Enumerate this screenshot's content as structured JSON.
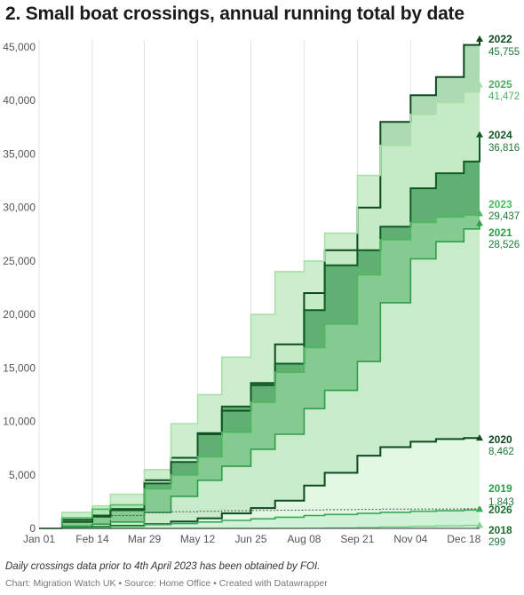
{
  "title": "2. Small boat crossings, annual running total by date",
  "note": "Daily crossings data prior to 4th April 2023 has been obtained by FOI.",
  "credit": "Chart: Migration Watch UK • Source: Home Office • Created with Datawrapper",
  "chart_data": {
    "type": "area",
    "title": "2. Small boat crossings, annual running total by date",
    "xlabel": "",
    "ylabel": "",
    "ylim": [
      0,
      45000
    ],
    "xlim": [
      "Jan 01",
      "Dec 31"
    ],
    "grid": "vertical gridlines at x ticks, horizontal baseline",
    "y_ticks": [
      "0",
      "5,000",
      "10,000",
      "15,000",
      "20,000",
      "25,000",
      "30,000",
      "35,000",
      "40,000",
      "45,000"
    ],
    "x_ticks": [
      "Jan 01",
      "Feb 14",
      "Mar 29",
      "May 12",
      "Jun 25",
      "Aug 08",
      "Sep 21",
      "Nov 04",
      "Dec 18"
    ],
    "series": [
      {
        "name": "2022",
        "end_label": "45,755",
        "color": "#0d4a1f",
        "x": [
          "Jan 01",
          "Jan 20",
          "Feb 14",
          "Mar 01",
          "Mar 29",
          "Apr 20",
          "May 12",
          "Jun 01",
          "Jun 25",
          "Jul 15",
          "Aug 08",
          "Aug 25",
          "Sep 21",
          "Oct 10",
          "Nov 04",
          "Nov 25",
          "Dec 18",
          "Dec 31"
        ],
        "values": [
          0,
          800,
          1100,
          1800,
          4500,
          6600,
          8900,
          11000,
          13400,
          17200,
          22000,
          26000,
          30000,
          38000,
          40500,
          42200,
          45200,
          45755
        ]
      },
      {
        "name": "2025",
        "end_label": "41,472",
        "color": "#a8e0a8",
        "x": [
          "Jan 01",
          "Jan 20",
          "Feb 14",
          "Mar 01",
          "Mar 29",
          "Apr 20",
          "May 12",
          "Jun 01",
          "Jun 25",
          "Jul 15",
          "Aug 08",
          "Aug 25",
          "Sep 21",
          "Oct 10",
          "Nov 04",
          "Nov 25",
          "Dec 18",
          "Dec 31"
        ],
        "values": [
          0,
          1500,
          2100,
          3200,
          5500,
          9800,
          12500,
          16000,
          20000,
          24000,
          25000,
          27600,
          33000,
          35800,
          38700,
          39800,
          40800,
          41472
        ]
      },
      {
        "name": "2024",
        "end_label": "36,816",
        "color": "#0f5a24",
        "x": [
          "Jan 01",
          "Jan 20",
          "Feb 14",
          "Mar 01",
          "Mar 29",
          "Apr 20",
          "May 12",
          "Jun 01",
          "Jun 25",
          "Jul 15",
          "Aug 08",
          "Aug 25",
          "Sep 21",
          "Oct 10",
          "Nov 04",
          "Nov 25",
          "Dec 18",
          "Dec 31"
        ],
        "values": [
          0,
          600,
          1200,
          1700,
          4200,
          6200,
          8800,
          11400,
          13600,
          15400,
          20400,
          24600,
          26000,
          28200,
          31800,
          33200,
          34300,
          36816
        ]
      },
      {
        "name": "2023",
        "end_label": "29,437",
        "color": "#4bb85e",
        "x": [
          "Jan 01",
          "Jan 20",
          "Feb 14",
          "Mar 01",
          "Mar 29",
          "Apr 20",
          "May 12",
          "Jun 01",
          "Jun 25",
          "Jul 15",
          "Aug 08",
          "Aug 25",
          "Sep 21",
          "Oct 10",
          "Nov 04",
          "Nov 25",
          "Dec 18",
          "Dec 31"
        ],
        "values": [
          0,
          1000,
          1800,
          2200,
          3700,
          5000,
          6700,
          9000,
          11800,
          14600,
          16900,
          19100,
          23700,
          27000,
          28600,
          29100,
          29300,
          29437
        ]
      },
      {
        "name": "2021",
        "end_label": "28,526",
        "color": "#2e9e4a",
        "x": [
          "Jan 01",
          "Jan 20",
          "Feb 14",
          "Mar 01",
          "Mar 29",
          "Apr 20",
          "May 12",
          "Jun 01",
          "Jun 25",
          "Jul 15",
          "Aug 08",
          "Aug 25",
          "Sep 21",
          "Oct 10",
          "Nov 04",
          "Nov 25",
          "Dec 18",
          "Dec 31"
        ],
        "values": [
          0,
          200,
          400,
          600,
          1500,
          3000,
          4500,
          5800,
          7400,
          8800,
          11200,
          12900,
          15600,
          21100,
          25200,
          26800,
          28000,
          28526
        ]
      },
      {
        "name": "2020",
        "end_label": "8,462",
        "color": "#0d4a1f",
        "x": [
          "Jan 01",
          "Jan 20",
          "Feb 14",
          "Mar 01",
          "Mar 29",
          "Apr 20",
          "May 12",
          "Jun 01",
          "Jun 25",
          "Jul 15",
          "Aug 08",
          "Aug 25",
          "Sep 21",
          "Oct 10",
          "Nov 04",
          "Nov 25",
          "Dec 18",
          "Dec 31"
        ],
        "values": [
          0,
          50,
          150,
          250,
          400,
          650,
          950,
          1400,
          1900,
          2600,
          4000,
          5200,
          6800,
          7600,
          8100,
          8350,
          8450,
          8462
        ]
      },
      {
        "name": "2019",
        "end_label": "1,843",
        "color": "#4a4a4a",
        "x": [
          "Jan 01",
          "Jan 20",
          "Feb 14",
          "Mar 01",
          "Mar 29",
          "Apr 20",
          "May 12",
          "Jun 01",
          "Jun 25",
          "Jul 15",
          "Aug 08",
          "Aug 25",
          "Sep 21",
          "Oct 10",
          "Nov 04",
          "Nov 25",
          "Dec 18",
          "Dec 31"
        ],
        "values": [
          0,
          60,
          120,
          1200,
          1450,
          1550,
          1600,
          1650,
          1680,
          1700,
          1720,
          1750,
          1780,
          1800,
          1810,
          1820,
          1835,
          1843
        ]
      },
      {
        "name": "2026",
        "end_label": "",
        "color": "#3aa85a",
        "x": [
          "Jan 01",
          "Jan 20",
          "Feb 14",
          "Mar 01",
          "Mar 29",
          "Apr 20",
          "May 12",
          "Jun 01",
          "Jun 25",
          "Jul 15",
          "Aug 08",
          "Aug 25",
          "Sep 21",
          "Oct 10",
          "Nov 04",
          "Nov 25",
          "Dec 18",
          "Dec 31"
        ],
        "values": [
          0,
          40,
          100,
          200,
          350,
          450,
          600,
          750,
          900,
          1050,
          1200,
          1300,
          1400,
          1500,
          1600,
          1650,
          1720,
          1800
        ]
      },
      {
        "name": "2018",
        "end_label": "299",
        "color": "#7fd18f",
        "x": [
          "Jan 01",
          "Jan 20",
          "Feb 14",
          "Mar 01",
          "Mar 29",
          "Apr 20",
          "May 12",
          "Jun 01",
          "Jun 25",
          "Jul 15",
          "Aug 08",
          "Aug 25",
          "Sep 21",
          "Oct 10",
          "Nov 04",
          "Nov 25",
          "Dec 18",
          "Dec 31"
        ],
        "values": [
          0,
          0,
          0,
          0,
          0,
          0,
          0,
          0,
          0,
          10,
          20,
          40,
          80,
          150,
          200,
          240,
          280,
          299
        ]
      }
    ]
  }
}
